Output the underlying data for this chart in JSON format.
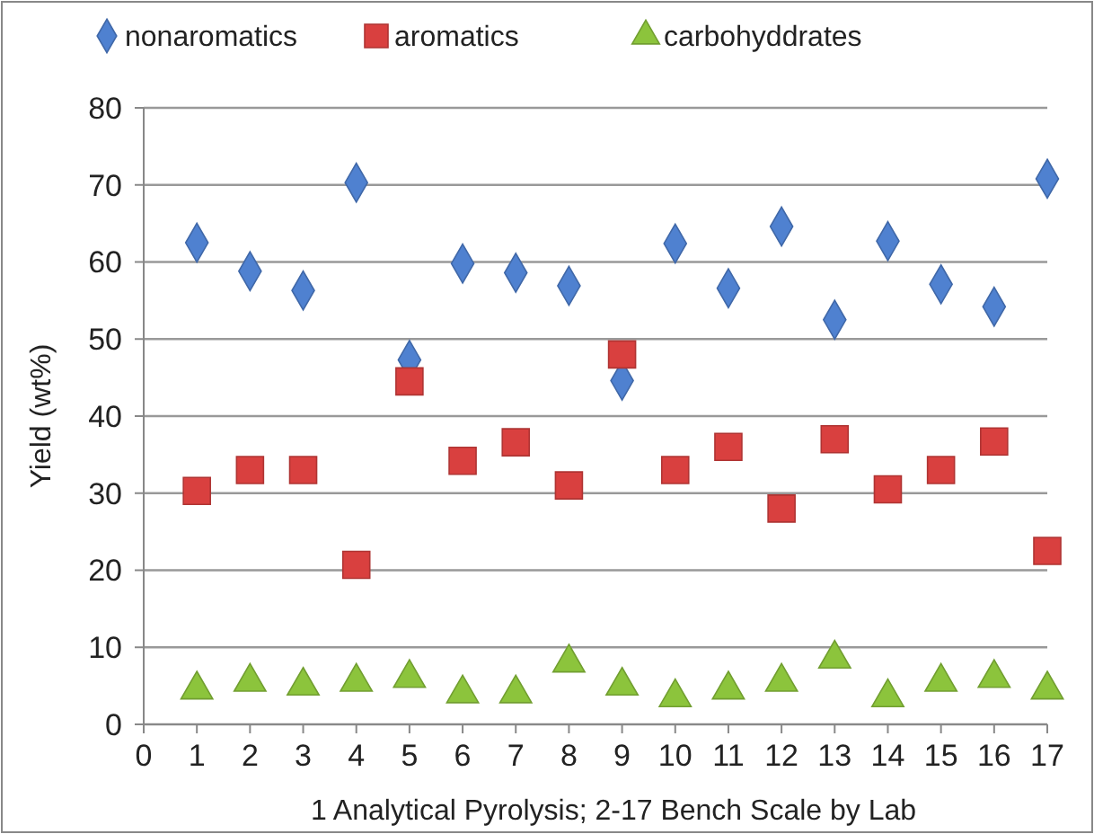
{
  "chart_data": {
    "type": "scatter",
    "xlabel": "1 Analytical Pyrolysis; 2-17 Bench Scale by Lab",
    "ylabel": "Yield (wt%)",
    "x": [
      1,
      2,
      3,
      4,
      5,
      6,
      7,
      8,
      9,
      10,
      11,
      12,
      13,
      14,
      15,
      16,
      17
    ],
    "series": [
      {
        "name": "nonaromatics",
        "color": "#4f81d0",
        "marker": "diamond",
        "values": [
          62.5,
          58.8,
          56.3,
          70.3,
          47.3,
          59.8,
          58.6,
          56.9,
          44.6,
          62.4,
          56.6,
          64.6,
          52.5,
          62.7,
          57.1,
          54.2,
          70.8
        ]
      },
      {
        "name": "aromatics",
        "color": "#d9403f",
        "marker": "square",
        "values": [
          30.3,
          33,
          33,
          20.7,
          44.5,
          34.2,
          36.6,
          31,
          48,
          33,
          36,
          28,
          37,
          30.5,
          33,
          36.7,
          22.5
        ]
      },
      {
        "name": "carbohyddrates",
        "color": "#8cc43c",
        "marker": "triangle",
        "values": [
          4.5,
          5.5,
          5,
          5.5,
          6,
          4,
          4,
          8,
          5,
          3.5,
          4.5,
          5.5,
          8.5,
          3.5,
          5.5,
          6,
          4.5
        ]
      }
    ],
    "xlim": [
      0,
      17
    ],
    "xticks": [
      0,
      1,
      2,
      3,
      4,
      5,
      6,
      7,
      8,
      9,
      10,
      11,
      12,
      13,
      14,
      15,
      16,
      17
    ],
    "ylim": [
      0,
      80
    ],
    "yticks": [
      0,
      10,
      20,
      30,
      40,
      50,
      60,
      70,
      80
    ],
    "grid": "y",
    "legend": "top"
  }
}
